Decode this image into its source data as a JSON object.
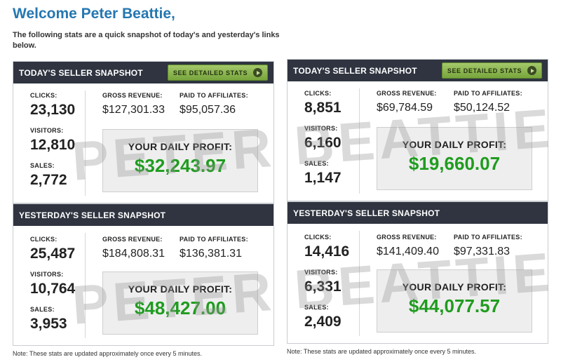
{
  "welcome": "Welcome Peter Beattie,",
  "intro": "The following stats are a quick snapshot of today's and yesterday's links below.",
  "labels": {
    "clicks": "CLICKS:",
    "visitors": "VISITORS:",
    "sales": "SALES:",
    "gross_revenue": "GROSS REVENUE:",
    "paid_to_affiliates": "PAID TO AFFILIATES:",
    "daily_profit": "YOUR DAILY PROFIT:"
  },
  "detail_button": {
    "label": "SEE DETAILED STATS",
    "icon": "play-circle-icon"
  },
  "note": "Note: These stats are updated approximately once every 5 minutes.",
  "watermark": "PETER BEATTIE",
  "colors": {
    "header_bg": "#2f3440",
    "profit_green": "#1f9c1f",
    "button_green": "#8cb853",
    "title_blue": "#2577b1"
  },
  "columns": [
    {
      "today": {
        "title": "TODAY'S SELLER SNAPSHOT",
        "clicks": "23,130",
        "visitors": "12,810",
        "sales": "2,772",
        "gross_revenue": "$127,301.33",
        "paid_to_affiliates": "$95,057.36",
        "daily_profit": "$32,243.97"
      },
      "yesterday": {
        "title": "YESTERDAY'S SELLER SNAPSHOT",
        "clicks": "25,487",
        "visitors": "10,764",
        "sales": "3,953",
        "gross_revenue": "$184,808.31",
        "paid_to_affiliates": "$136,381.31",
        "daily_profit": "$48,427.00"
      }
    },
    {
      "today": {
        "title": "TODAY'S SELLER SNAPSHOT",
        "clicks": "8,851",
        "visitors": "6,160",
        "sales": "1,147",
        "gross_revenue": "$69,784.59",
        "paid_to_affiliates": "$50,124.52",
        "daily_profit": "$19,660.07"
      },
      "yesterday": {
        "title": "YESTERDAY'S SELLER SNAPSHOT",
        "clicks": "14,416",
        "visitors": "6,331",
        "sales": "2,409",
        "gross_revenue": "$141,409.40",
        "paid_to_affiliates": "$97,331.83",
        "daily_profit": "$44,077.57"
      }
    }
  ]
}
